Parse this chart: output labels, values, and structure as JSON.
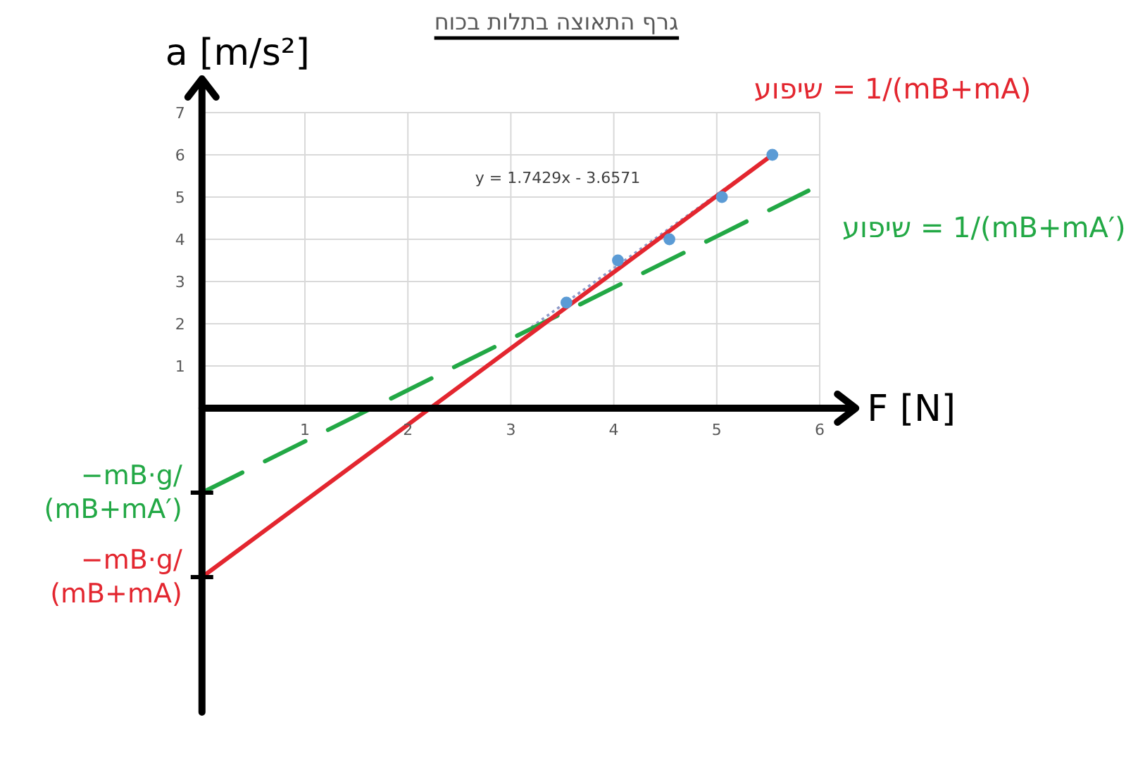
{
  "chart_data": {
    "type": "scatter",
    "title": "גרף התאוצה בתלות בכוח",
    "xlabel": "F [N]",
    "ylabel": "a [m/s²]",
    "xlim": [
      0,
      6.35
    ],
    "ylim": [
      -7.2,
      7.8
    ],
    "xticks": [
      1,
      2,
      3,
      4,
      5,
      6
    ],
    "yticks": [
      {
        "value": -4,
        "label": null
      },
      {
        "value": -2,
        "label": null
      },
      1,
      2,
      3,
      4,
      5,
      6,
      7
    ],
    "grid": true,
    "series": [
      {
        "type": "scatter",
        "color": "#5b9bd5",
        "marker": "circle",
        "x": [
          3.54,
          4.04,
          4.54,
          5.05,
          5.54
        ],
        "values": [
          2.5,
          3.5,
          4.0,
          5.0,
          6.0
        ]
      },
      {
        "type": "line",
        "color": "#8e9ac8",
        "line_style": "dotted",
        "x": [
          3.2,
          5.54
        ],
        "values": [
          1.92,
          6.0
        ]
      },
      {
        "type": "line",
        "name": "שיפוע = 1/(mB+mA′)",
        "color": "#22a845",
        "line_style": "dashed",
        "x": [
          0,
          5.89
        ],
        "values": [
          -2.0,
          5.15
        ]
      },
      {
        "type": "line",
        "name": "שיפוע = 1/(mB+mA)",
        "color": "#e3262f",
        "line_style": "solid",
        "x": [
          0,
          5.54
        ],
        "values": [
          -4.0,
          6.0
        ]
      }
    ],
    "annotations": [
      "y = 1.7429x - 3.6571",
      {
        "text": "−mB·g/(mB+mA′)",
        "x": 0,
        "y": -2.0
      },
      {
        "text": "−mB·g/(mB+mA)",
        "x": 0,
        "y": -4.0
      }
    ]
  }
}
